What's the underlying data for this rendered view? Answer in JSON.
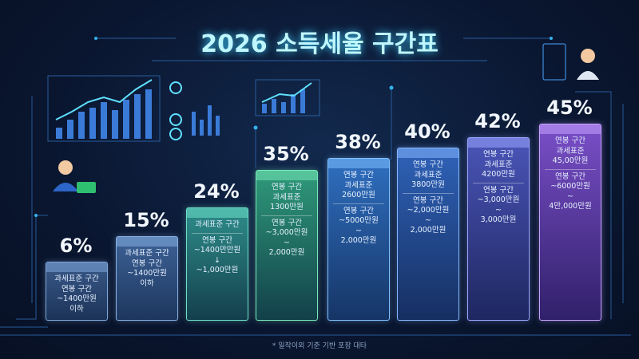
{
  "title": "2026 소득세율 구간표",
  "columns": [
    {
      "rate": "6%",
      "body": [
        "과세표준 구간",
        "연봉 구간",
        "~1400만원",
        "이하"
      ]
    },
    {
      "rate": "15%",
      "body": [
        "과세표준 구간",
        "연봉 구간",
        "~1400만원",
        "이하"
      ]
    },
    {
      "rate": "24%",
      "header": [
        "과세표준 구간"
      ],
      "body": [
        "연봉 구간",
        "~1400만만원",
        "↓",
        "~1,000만원"
      ]
    },
    {
      "rate": "35%",
      "header": [
        "연봉 구간",
        "과세표준",
        "1300만원"
      ],
      "body": [
        "연봉 구간",
        "~3,000만원",
        "~",
        "2,000만원"
      ]
    },
    {
      "rate": "38%",
      "header": [
        "연봉 구간",
        "과세표준",
        "2600만원"
      ],
      "body": [
        "연봉 구간",
        "~5000만원",
        "~",
        "2,000만원"
      ]
    },
    {
      "rate": "40%",
      "header": [
        "연봉 구간",
        "과세표준",
        "3800만원"
      ],
      "body": [
        "연봉 구간",
        "~2,000만원",
        "~",
        "2,000만원"
      ]
    },
    {
      "rate": "42%",
      "header": [
        "연봉 구간",
        "과세표준",
        "4200만원"
      ],
      "body": [
        "연봉 구간",
        "~3,000만원",
        "~",
        "3,000만원"
      ]
    },
    {
      "rate": "45%",
      "header": [
        "연봉 구간",
        "과세표준",
        "45,00만원"
      ],
      "body": [
        "연봉 구간",
        "~6000만원",
        "~",
        "4만,000만원"
      ]
    }
  ],
  "footnote": "* 일작이외 기준 기반 포장 대타"
}
